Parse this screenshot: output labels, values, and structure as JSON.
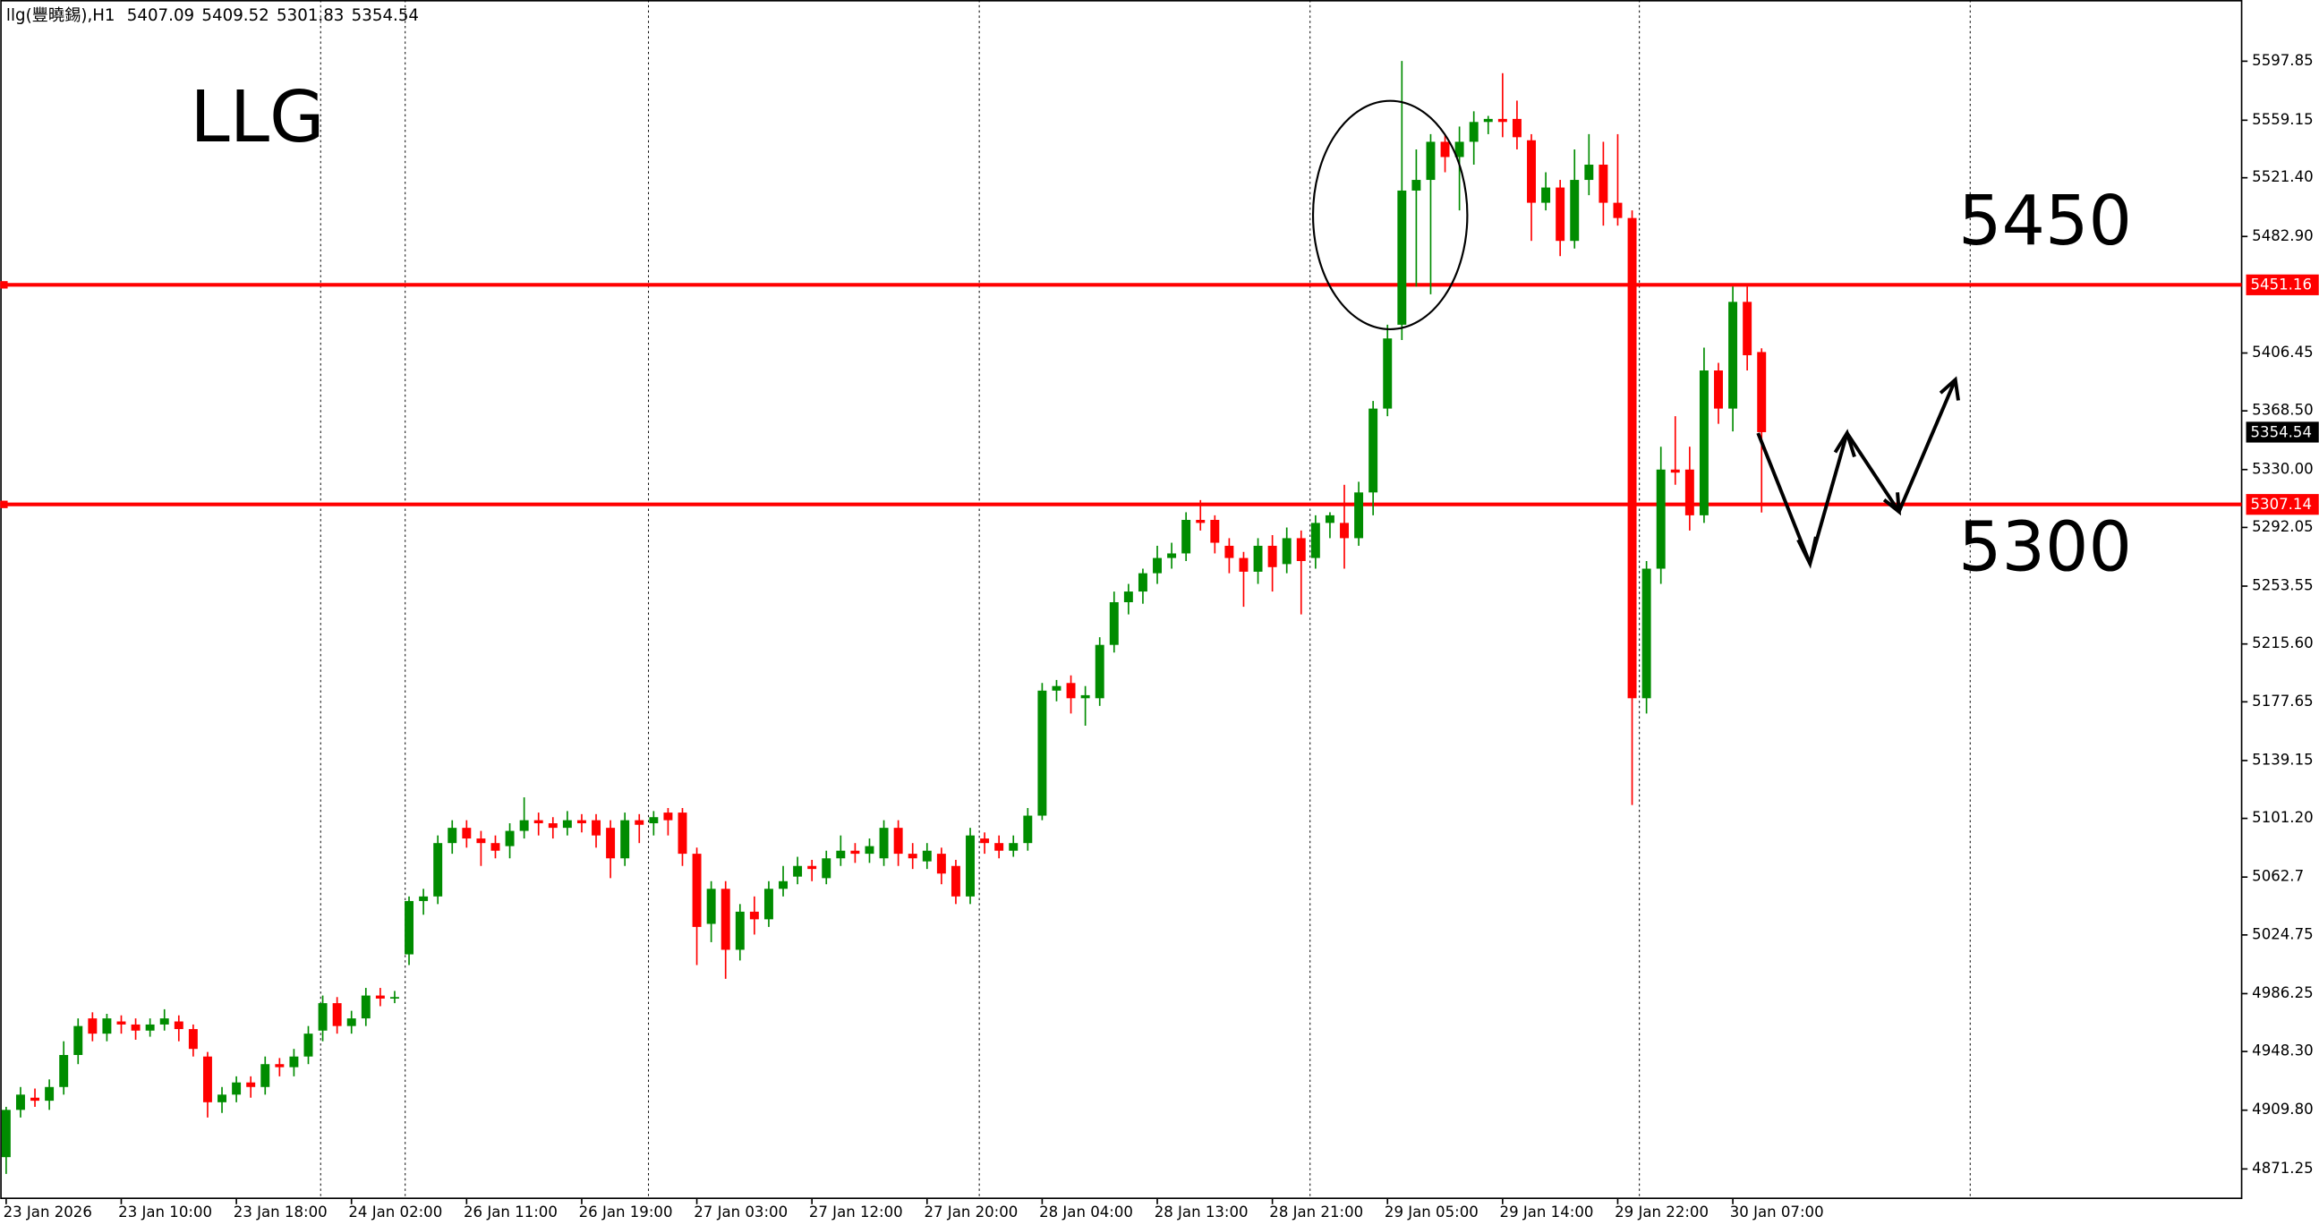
{
  "chart_data": {
    "type": "candlestick",
    "header": {
      "symbol": "llg(豐曉錫),H1"
    },
    "annotations": {
      "name": "LLG",
      "upper": "5450",
      "lower": "5300"
    },
    "up_color": "#008c00",
    "down_color": "#ff0000",
    "ylim": [
      4852,
      5638
    ],
    "yticks": [
      5597.85,
      5559.15,
      {
        "value": 5521.4,
        "label": "5521.40"
      },
      {
        "value": 5482.9,
        "label": "5482.90"
      },
      5406.45,
      {
        "value": 5368.5,
        "label": "5368.50"
      },
      {
        "value": 5330,
        "label": "5330.00"
      },
      5292.05,
      5253.55,
      {
        "value": 5215.6,
        "label": "5215.60"
      },
      5177.65,
      5139.15,
      {
        "value": 5101.2,
        "label": "5101.20"
      },
      5062.7,
      5024.75,
      4986.25,
      {
        "value": 4948.3,
        "label": "4948.30"
      },
      {
        "value": 4909.8,
        "label": "4909.80"
      },
      4871.25
    ],
    "hlines": [
      {
        "value": 5451.16,
        "color": "#ff0000"
      },
      {
        "value": 5307.14,
        "color": "#ff0000"
      }
    ],
    "categories": [
      "23 Jan 2026",
      null,
      null,
      null,
      null,
      null,
      null,
      null,
      "23 Jan 10:00",
      null,
      null,
      null,
      null,
      null,
      null,
      null,
      "23 Jan 18:00",
      null,
      null,
      null,
      null,
      null,
      null,
      null,
      "24 Jan 02:00",
      null,
      null,
      null,
      null,
      null,
      null,
      null,
      "26 Jan 11:00",
      null,
      null,
      null,
      null,
      null,
      null,
      null,
      "26 Jan 19:00",
      null,
      null,
      null,
      null,
      null,
      null,
      null,
      "27 Jan 03:00",
      null,
      null,
      null,
      null,
      null,
      null,
      null,
      "27 Jan 12:00",
      null,
      null,
      null,
      null,
      null,
      null,
      null,
      "27 Jan 20:00",
      null,
      null,
      null,
      null,
      null,
      null,
      null,
      "28 Jan 04:00",
      null,
      null,
      null,
      null,
      null,
      null,
      null,
      "28 Jan 13:00",
      null,
      null,
      null,
      null,
      null,
      null,
      null,
      "28 Jan 21:00",
      null,
      null,
      null,
      null,
      null,
      null,
      null,
      "29 Jan 05:00",
      null,
      null,
      null,
      null,
      null,
      null,
      null,
      "29 Jan 14:00",
      null,
      null,
      null,
      null,
      null,
      null,
      null,
      "29 Jan 22:00",
      null,
      null,
      null,
      null,
      null,
      null,
      null,
      "30 Jan 07:00",
      null,
      null
    ],
    "candles": [
      [
        4879,
        4912,
        4868,
        4910
      ],
      [
        4910,
        4925,
        4905,
        4920
      ],
      [
        4918,
        4924,
        4912,
        4916
      ],
      [
        4916,
        4930,
        4910,
        4925
      ],
      [
        4925,
        4955,
        4920,
        4946
      ],
      [
        4946,
        4970,
        4940,
        4965
      ],
      [
        4970,
        4974,
        4955,
        4960
      ],
      [
        4960,
        4973,
        4955,
        4970
      ],
      [
        4968,
        4972,
        4960,
        4966
      ],
      [
        4966,
        4970,
        4956,
        4962
      ],
      [
        4962,
        4970,
        4958,
        4966
      ],
      [
        4966,
        4976,
        4962,
        4970
      ],
      [
        4968,
        4972,
        4955,
        4963
      ],
      [
        4963,
        4966,
        4945,
        4950
      ],
      [
        4945,
        4948,
        4905,
        4915
      ],
      [
        4915,
        4925,
        4908,
        4920
      ],
      [
        4920,
        4932,
        4915,
        4928
      ],
      [
        4928,
        4932,
        4918,
        4925
      ],
      [
        4925,
        4945,
        4920,
        4940
      ],
      [
        4940,
        4944,
        4932,
        4938
      ],
      [
        4938,
        4950,
        4932,
        4945
      ],
      [
        4945,
        4965,
        4940,
        4960
      ],
      [
        4962,
        4985,
        4955,
        4980
      ],
      [
        4980,
        4984,
        4960,
        4965
      ],
      [
        4965,
        4975,
        4960,
        4970
      ],
      [
        4970,
        4990,
        4965,
        4985
      ],
      [
        4985,
        4990,
        4978,
        4983
      ],
      [
        4983,
        4988,
        4980,
        4984
      ],
      [
        5012,
        5050,
        5005,
        5047
      ],
      [
        5047,
        5055,
        5038,
        5050
      ],
      [
        5050,
        5090,
        5045,
        5085
      ],
      [
        5085,
        5100,
        5078,
        5095
      ],
      [
        5095,
        5100,
        5082,
        5088
      ],
      [
        5088,
        5093,
        5070,
        5085
      ],
      [
        5085,
        5090,
        5075,
        5080
      ],
      [
        5083,
        5098,
        5075,
        5093
      ],
      [
        5093,
        5115,
        5088,
        5100
      ],
      [
        5100,
        5105,
        5090,
        5098
      ],
      [
        5098,
        5102,
        5088,
        5095
      ],
      [
        5095,
        5106,
        5090,
        5100
      ],
      [
        5100,
        5104,
        5092,
        5098
      ],
      [
        5100,
        5104,
        5082,
        5090
      ],
      [
        5095,
        5100,
        5062,
        5075
      ],
      [
        5075,
        5105,
        5070,
        5100
      ],
      [
        5100,
        5104,
        5085,
        5097
      ],
      [
        5098,
        5106,
        5090,
        5102
      ],
      [
        5105,
        5108,
        5090,
        5100
      ],
      [
        5105,
        5108,
        5070,
        5078
      ],
      [
        5078,
        5082,
        5005,
        5030
      ],
      [
        5032,
        5060,
        5020,
        5055
      ],
      [
        5055,
        5060,
        4996,
        5015
      ],
      [
        5015,
        5045,
        5008,
        5040
      ],
      [
        5040,
        5050,
        5025,
        5035
      ],
      [
        5035,
        5060,
        5030,
        5055
      ],
      [
        5055,
        5070,
        5050,
        5060
      ],
      [
        5063,
        5076,
        5058,
        5070
      ],
      [
        5070,
        5074,
        5060,
        5068
      ],
      [
        5062,
        5080,
        5058,
        5075
      ],
      [
        5075,
        5090,
        5070,
        5080
      ],
      [
        5080,
        5085,
        5072,
        5078
      ],
      [
        5078,
        5088,
        5072,
        5083
      ],
      [
        5075,
        5100,
        5070,
        5095
      ],
      [
        5095,
        5100,
        5070,
        5078
      ],
      [
        5078,
        5085,
        5068,
        5075
      ],
      [
        5073,
        5085,
        5068,
        5080
      ],
      [
        5078,
        5082,
        5058,
        5065
      ],
      [
        5070,
        5074,
        5045,
        5050
      ],
      [
        5050,
        5095,
        5045,
        5090
      ],
      [
        5088,
        5092,
        5078,
        5085
      ],
      [
        5085,
        5090,
        5075,
        5080
      ],
      [
        5080,
        5090,
        5076,
        5085
      ],
      [
        5085,
        5108,
        5080,
        5103
      ],
      [
        5103,
        5190,
        5100,
        5185
      ],
      [
        5185,
        5192,
        5178,
        5188
      ],
      [
        5190,
        5195,
        5170,
        5180
      ],
      [
        5180,
        5188,
        5162,
        5182
      ],
      [
        5180,
        5220,
        5175,
        5215
      ],
      [
        5215,
        5250,
        5210,
        5243
      ],
      [
        5243,
        5255,
        5235,
        5250
      ],
      [
        5250,
        5265,
        5242,
        5262
      ],
      [
        5262,
        5280,
        5255,
        5272
      ],
      [
        5272,
        5282,
        5265,
        5275
      ],
      [
        5275,
        5302,
        5270,
        5297
      ],
      [
        5297,
        5310,
        5290,
        5295
      ],
      [
        5297,
        5300,
        5275,
        5282
      ],
      [
        5280,
        5285,
        5262,
        5272
      ],
      [
        5272,
        5276,
        5240,
        5263
      ],
      [
        5263,
        5285,
        5255,
        5280
      ],
      [
        5280,
        5287,
        5250,
        5266
      ],
      [
        5268,
        5292,
        5262,
        5285
      ],
      [
        5285,
        5290,
        5235,
        5270
      ],
      [
        5272,
        5300,
        5265,
        5295
      ],
      [
        5295,
        5302,
        5285,
        5300
      ],
      [
        5295,
        5320,
        5265,
        5285
      ],
      [
        5285,
        5322,
        5280,
        5315
      ],
      [
        5315,
        5375,
        5300,
        5370
      ],
      [
        5370,
        5425,
        5365,
        5416
      ],
      [
        5425,
        5598,
        5415,
        5513
      ],
      [
        5513,
        5540,
        5450,
        5520
      ],
      [
        5520,
        5550,
        5445,
        5545
      ],
      [
        5545,
        5550,
        5525,
        5535
      ],
      [
        5535,
        5555,
        5500,
        5545
      ],
      [
        5545,
        5565,
        5530,
        5558
      ],
      [
        5558,
        5562,
        5550,
        5560
      ],
      [
        5560,
        5590,
        5548,
        5558
      ],
      [
        5560,
        5572,
        5540,
        5548
      ],
      [
        5546,
        5550,
        5480,
        5505
      ],
      [
        5505,
        5525,
        5500,
        5515
      ],
      [
        5515,
        5520,
        5470,
        5480
      ],
      [
        5480,
        5540,
        5475,
        5520
      ],
      [
        5520,
        5550,
        5510,
        5530
      ],
      [
        5530,
        5545,
        5490,
        5505
      ],
      [
        5505,
        5550,
        5490,
        5495
      ],
      [
        5495,
        5500,
        5110,
        5180
      ],
      [
        5180,
        5270,
        5170,
        5265
      ],
      [
        5265,
        5345,
        5255,
        5330
      ],
      [
        5330,
        5365,
        5320,
        5328
      ],
      [
        5330,
        5345,
        5290,
        5300
      ],
      [
        5300,
        5410,
        5295,
        5395
      ],
      [
        5395,
        5400,
        5360,
        5370
      ],
      [
        5370,
        5450,
        5355,
        5440
      ],
      [
        5440,
        5450,
        5395,
        5405
      ],
      [
        5407.09,
        5409.52,
        5301.83,
        5354.54
      ]
    ]
  }
}
